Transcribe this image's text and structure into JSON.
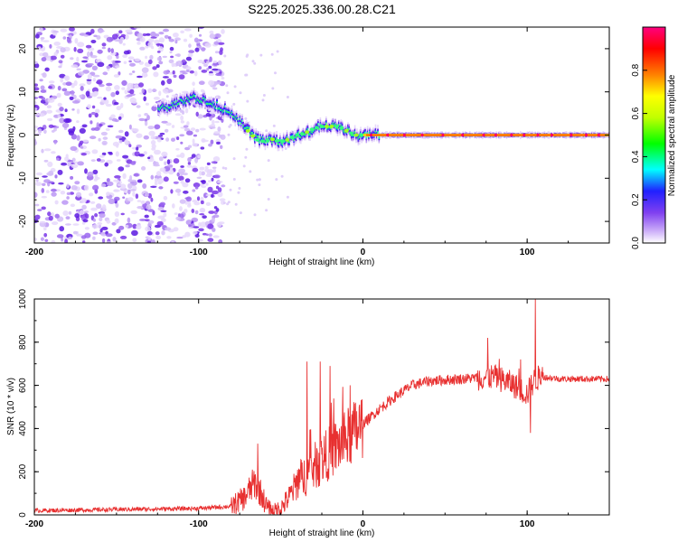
{
  "title": "S225.2025.336.00.28.C21",
  "chart_data": [
    {
      "type": "heatmap",
      "name": "spectrogram",
      "xlabel": "Height of straight line (km)",
      "ylabel": "Frequency (Hz)",
      "xlim": [
        -200,
        150
      ],
      "ylim": [
        -25,
        25
      ],
      "xticks": [
        -200,
        -100,
        0,
        100
      ],
      "yticks": [
        -20,
        -10,
        0,
        10,
        20
      ],
      "xtick_labels": [
        "-200",
        "-100",
        "0",
        "100"
      ],
      "ytick_labels": [
        "-20",
        "-10",
        "0",
        "10",
        "20"
      ],
      "colorbar": {
        "label": "Normalized spectral amplitude",
        "range": [
          0,
          1
        ],
        "ticks": [
          0.0,
          0.2,
          0.4,
          0.6,
          0.8
        ],
        "tick_labels": [
          "0.0",
          "0.2",
          "0.4",
          "0.6",
          "0.8"
        ],
        "colors": [
          "#ffffff",
          "#c8a8f8",
          "#8040f0",
          "#2020ff",
          "#00ffff",
          "#00ff00",
          "#c0ff00",
          "#ffff00",
          "#ff8000",
          "#ff0000",
          "#ff0080"
        ]
      },
      "ridge": {
        "x": [
          -125,
          -115,
          -105,
          -95,
          -85,
          -80,
          -75,
          -70,
          -65,
          -60,
          -55,
          -50,
          -45,
          -40,
          -35,
          -30,
          -25,
          -20,
          -15,
          -10,
          -5,
          0,
          5,
          10,
          150
        ],
        "y": [
          6,
          7,
          8.5,
          8,
          6,
          5,
          3,
          1,
          -1,
          -1.5,
          -1,
          -1.5,
          -1,
          0,
          0.5,
          1.5,
          2,
          2,
          2,
          1,
          0,
          0,
          0,
          0,
          0
        ]
      },
      "noise_region": [
        -200,
        -85
      ]
    },
    {
      "type": "line",
      "name": "snr",
      "xlabel": "Height of straight line (km)",
      "ylabel": "SNR (10 * v/v)",
      "xlim": [
        -200,
        150
      ],
      "ylim": [
        0,
        1000
      ],
      "xticks": [
        -200,
        -100,
        0,
        100
      ],
      "yticks": [
        0,
        200,
        400,
        600,
        800,
        1000
      ],
      "xtick_labels": [
        "-200",
        "-100",
        "0",
        "100"
      ],
      "ytick_labels": [
        "0",
        "200",
        "400",
        "600",
        "800",
        "1000"
      ],
      "color": "#e83030",
      "trend": {
        "x": [
          -200,
          -100,
          -80,
          -72,
          -66,
          -62,
          -58,
          -54,
          -50,
          -45,
          -40,
          -30,
          -20,
          -10,
          0,
          10,
          20,
          30,
          40,
          60,
          80,
          90,
          100,
          104,
          108,
          120,
          150
        ],
        "y": [
          20,
          30,
          40,
          80,
          150,
          100,
          30,
          15,
          30,
          80,
          150,
          220,
          290,
          350,
          420,
          490,
          550,
          600,
          620,
          630,
          640,
          610,
          560,
          620,
          640,
          630,
          630
        ]
      },
      "spikes": [
        {
          "x": -34,
          "y": 710
        },
        {
          "x": -26,
          "y": 710
        },
        {
          "x": -20,
          "y": 690
        },
        {
          "x": -64,
          "y": 330
        },
        {
          "x": 76,
          "y": 820
        },
        {
          "x": 105,
          "y": 1000
        },
        {
          "x": 102,
          "y": 380
        }
      ]
    }
  ]
}
